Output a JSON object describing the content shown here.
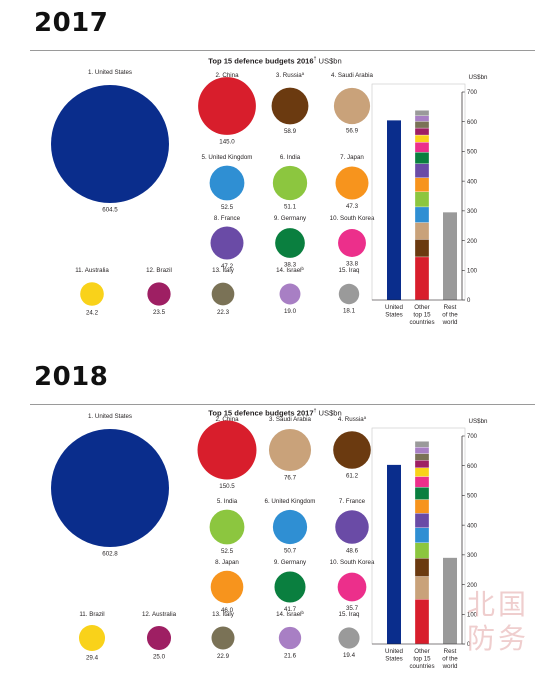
{
  "watermark": "北国\n防务",
  "chart_data": [
    {
      "type": "bubble+stacked-bar",
      "year_heading": "2017",
      "title": "Top 15 defence budgets 2016",
      "title_note": "†",
      "unit_label": "US$bn",
      "bar_axis_label": "US$bn",
      "countries": [
        {
          "rank": 1,
          "label": "1. United States",
          "value": 604.5,
          "value_label": "604.5",
          "color": "#0a2d8c"
        },
        {
          "rank": 2,
          "label": "2. China",
          "value": 145.0,
          "value_label": "145.0",
          "color": "#d81e2c"
        },
        {
          "rank": 3,
          "label": "3. Russia",
          "note": "a",
          "value": 58.9,
          "value_label": "58.9",
          "color": "#6b3a10"
        },
        {
          "rank": 4,
          "label": "4. Saudi Arabia",
          "value": 56.9,
          "value_label": "56.9",
          "color": "#c9a27a"
        },
        {
          "rank": 5,
          "label": "5. United Kingdom",
          "value": 52.5,
          "value_label": "52.5",
          "color": "#2f8fd3"
        },
        {
          "rank": 6,
          "label": "6. India",
          "value": 51.1,
          "value_label": "51.1",
          "color": "#8cc63f"
        },
        {
          "rank": 7,
          "label": "7. Japan",
          "value": 47.3,
          "value_label": "47.3",
          "color": "#f7941d"
        },
        {
          "rank": 8,
          "label": "8. France",
          "value": 47.2,
          "value_label": "47.2",
          "color": "#6a4ba6"
        },
        {
          "rank": 9,
          "label": "9. Germany",
          "value": 38.3,
          "value_label": "38.3",
          "color": "#0a7f3f"
        },
        {
          "rank": 10,
          "label": "10. South Korea",
          "value": 33.8,
          "value_label": "33.8",
          "color": "#ec2f8b"
        },
        {
          "rank": 11,
          "label": "11. Australia",
          "value": 24.2,
          "value_label": "24.2",
          "color": "#f9d21a"
        },
        {
          "rank": 12,
          "label": "12. Brazil",
          "value": 23.5,
          "value_label": "23.5",
          "color": "#9e1f63"
        },
        {
          "rank": 13,
          "label": "13. Italy",
          "value": 22.3,
          "value_label": "22.3",
          "color": "#7a7256"
        },
        {
          "rank": 14,
          "label": "14. Israel",
          "note": "b",
          "value": 19.0,
          "value_label": "19.0",
          "color": "#a87fc4"
        },
        {
          "rank": 15,
          "label": "15. Iraq",
          "value": 18.1,
          "value_label": "18.1",
          "color": "#9a9a9a"
        }
      ],
      "bars": {
        "categories": [
          "United\nStates",
          "Other\ntop 15\ncountries",
          "Rest\nof the\nworld"
        ],
        "united_states": 604.5,
        "rest_of_world": 295,
        "ylim": [
          0,
          700
        ],
        "yticks": [
          0,
          100,
          200,
          300,
          400,
          500,
          600,
          700
        ]
      }
    },
    {
      "type": "bubble+stacked-bar",
      "year_heading": "2018",
      "title": "Top 15 defence budgets 2017",
      "title_note": "†",
      "unit_label": "US$bn",
      "bar_axis_label": "US$bn",
      "countries": [
        {
          "rank": 1,
          "label": "1. United States",
          "value": 602.8,
          "value_label": "602.8",
          "color": "#0a2d8c"
        },
        {
          "rank": 2,
          "label": "2. China",
          "value": 150.5,
          "value_label": "150.5",
          "color": "#d81e2c"
        },
        {
          "rank": 3,
          "label": "3. Saudi Arabia",
          "value": 76.7,
          "value_label": "76.7",
          "color": "#c9a27a"
        },
        {
          "rank": 4,
          "label": "4. Russia",
          "note": "a",
          "value": 61.2,
          "value_label": "61.2",
          "color": "#6b3a10"
        },
        {
          "rank": 5,
          "label": "5. India",
          "value": 52.5,
          "value_label": "52.5",
          "color": "#8cc63f"
        },
        {
          "rank": 6,
          "label": "6. United Kingdom",
          "value": 50.7,
          "value_label": "50.7",
          "color": "#2f8fd3"
        },
        {
          "rank": 7,
          "label": "7. France",
          "value": 48.6,
          "value_label": "48.6",
          "color": "#6a4ba6"
        },
        {
          "rank": 8,
          "label": "8. Japan",
          "value": 46.0,
          "value_label": "46.0",
          "color": "#f7941d"
        },
        {
          "rank": 9,
          "label": "9. Germany",
          "value": 41.7,
          "value_label": "41.7",
          "color": "#0a7f3f"
        },
        {
          "rank": 10,
          "label": "10. South Korea",
          "value": 35.7,
          "value_label": "35.7",
          "color": "#ec2f8b"
        },
        {
          "rank": 11,
          "label": "11. Brazil",
          "value": 29.4,
          "value_label": "29.4",
          "color": "#f9d21a"
        },
        {
          "rank": 12,
          "label": "12. Australia",
          "value": 25.0,
          "value_label": "25.0",
          "color": "#9e1f63"
        },
        {
          "rank": 13,
          "label": "13. Italy",
          "value": 22.9,
          "value_label": "22.9",
          "color": "#7a7256"
        },
        {
          "rank": 14,
          "label": "14. Israel",
          "note": "b",
          "value": 21.6,
          "value_label": "21.6",
          "color": "#a87fc4"
        },
        {
          "rank": 15,
          "label": "15. Iraq",
          "value": 19.4,
          "value_label": "19.4",
          "color": "#9a9a9a"
        }
      ],
      "bars": {
        "categories": [
          "United\nStates",
          "Other\ntop 15\ncountries",
          "Rest\nof the\nworld"
        ],
        "united_states": 602.8,
        "rest_of_world": 290,
        "ylim": [
          0,
          700
        ],
        "yticks": [
          0,
          100,
          200,
          300,
          400,
          500,
          600,
          700
        ]
      }
    }
  ]
}
